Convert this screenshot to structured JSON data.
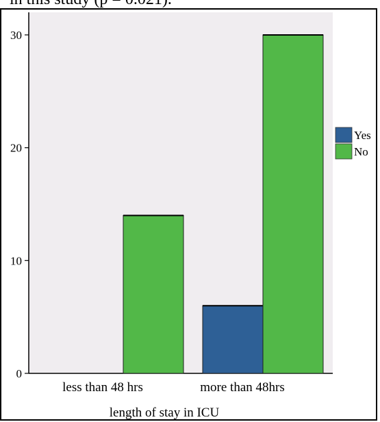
{
  "page": {
    "caption_fragment": "in this study (p = 0.021)."
  },
  "chart_data": {
    "type": "bar",
    "categories": [
      "less than 48 hrs",
      "more than 48hrs"
    ],
    "series": [
      {
        "name": "Yes",
        "values": [
          0,
          6
        ],
        "color": "#2e6096"
      },
      {
        "name": "No",
        "values": [
          14,
          30
        ],
        "color": "#52b848"
      }
    ],
    "xlabel": "length of stay in ICU",
    "ylabel": "",
    "ylim": [
      0,
      32
    ],
    "yticks": [
      0,
      10,
      20,
      30
    ],
    "grid": false,
    "legend": "right",
    "plot_background": "#f0edf0"
  }
}
